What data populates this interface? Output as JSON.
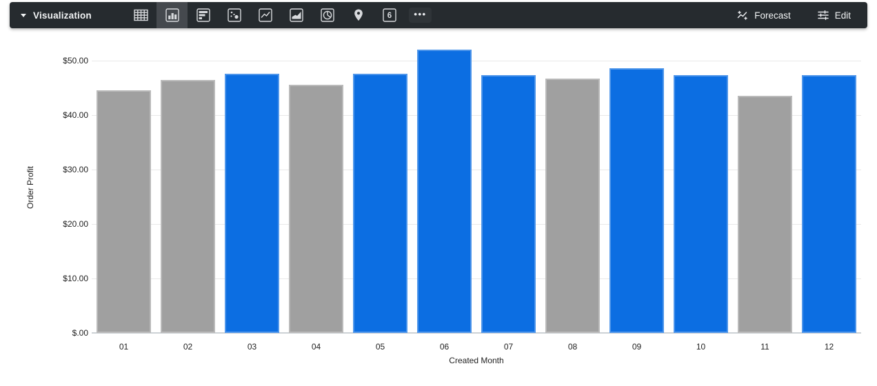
{
  "toolbar": {
    "menu_label": "Visualization",
    "selected_viz": "column",
    "viz_buttons": [
      {
        "id": "table"
      },
      {
        "id": "column"
      },
      {
        "id": "row"
      },
      {
        "id": "scatter"
      },
      {
        "id": "line"
      },
      {
        "id": "area"
      },
      {
        "id": "pie"
      },
      {
        "id": "map"
      },
      {
        "id": "single-value"
      },
      {
        "id": "more"
      }
    ],
    "single_value_glyph": "6",
    "more_glyph": "•••",
    "forecast_label": "Forecast",
    "edit_label": "Edit",
    "colors": {
      "background": "#262b2f",
      "selected_tile": "#45494e",
      "icon": "#d8dadd",
      "text": "#f1f3f4"
    }
  },
  "chart_data": {
    "type": "bar",
    "title": "",
    "xlabel": "Created Month",
    "ylabel": "Order Profit",
    "categories": [
      "01",
      "02",
      "03",
      "04",
      "05",
      "06",
      "07",
      "08",
      "09",
      "10",
      "11",
      "12"
    ],
    "values": [
      44.5,
      46.5,
      47.6,
      45.6,
      47.6,
      52.0,
      47.3,
      46.7,
      48.6,
      47.3,
      43.6,
      47.3
    ],
    "bar_colors": [
      "gray",
      "gray",
      "blue",
      "gray",
      "blue",
      "blue",
      "blue",
      "gray",
      "blue",
      "blue",
      "gray",
      "blue"
    ],
    "palette": {
      "blue": "#0c6ee2",
      "gray": "#a0a0a0"
    },
    "y_ticks": [
      {
        "value": 0,
        "label": "$.00"
      },
      {
        "value": 10,
        "label": "$10.00"
      },
      {
        "value": 20,
        "label": "$20.00"
      },
      {
        "value": 30,
        "label": "$30.00"
      },
      {
        "value": 40,
        "label": "$40.00"
      },
      {
        "value": 50,
        "label": "$50.00"
      }
    ],
    "ylim": [
      0,
      53.5
    ],
    "grid": true,
    "legend": "none"
  }
}
